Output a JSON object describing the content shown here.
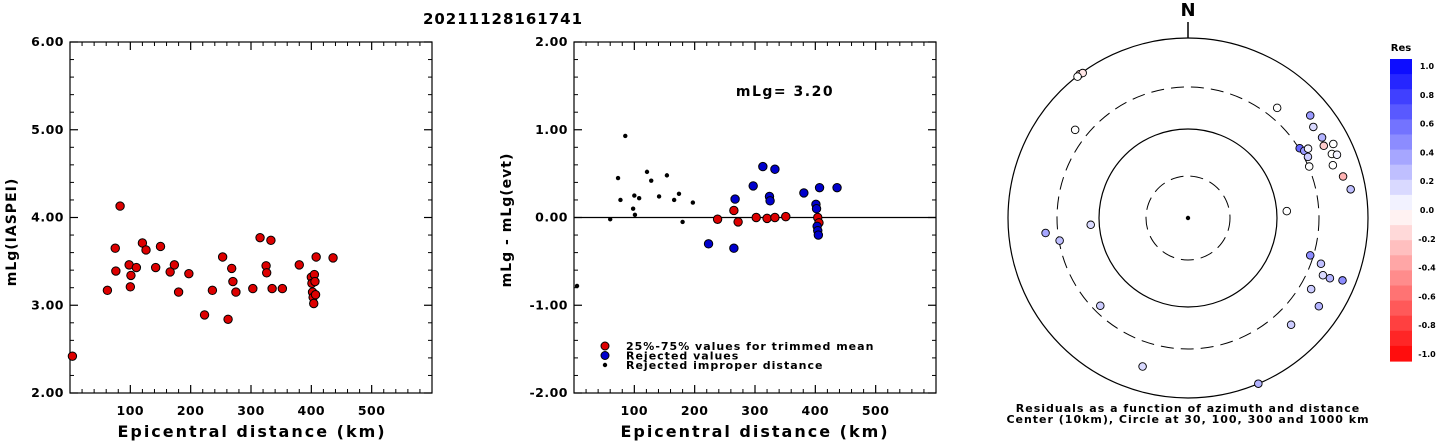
{
  "title": "20211128161741",
  "chart_data": [
    {
      "type": "scatter",
      "id": "left",
      "xlabel": "Epicentral distance (km)",
      "ylabel": "mLg(IASPEI)",
      "xlim": [
        0,
        600
      ],
      "ylim": [
        2.0,
        6.0
      ],
      "xticks": [
        "100",
        "200",
        "300",
        "400",
        "500"
      ],
      "yticks": [
        "2.00",
        "3.00",
        "4.00",
        "5.00",
        "6.00"
      ],
      "grid": false,
      "points": [
        [
          4,
          2.42
        ],
        [
          62,
          3.17
        ],
        [
          75,
          3.65
        ],
        [
          76,
          3.39
        ],
        [
          83,
          4.13
        ],
        [
          98,
          3.46
        ],
        [
          100,
          3.21
        ],
        [
          101,
          3.34
        ],
        [
          110,
          3.43
        ],
        [
          120,
          3.71
        ],
        [
          126,
          3.63
        ],
        [
          142,
          3.43
        ],
        [
          150,
          3.67
        ],
        [
          166,
          3.38
        ],
        [
          173,
          3.46
        ],
        [
          180,
          3.15
        ],
        [
          197,
          3.36
        ],
        [
          223,
          2.89
        ],
        [
          236,
          3.17
        ],
        [
          253,
          3.55
        ],
        [
          262,
          2.84
        ],
        [
          268,
          3.42
        ],
        [
          270,
          3.27
        ],
        [
          275,
          3.15
        ],
        [
          303,
          3.19
        ],
        [
          315,
          3.77
        ],
        [
          325,
          3.45
        ],
        [
          326,
          3.37
        ],
        [
          333,
          3.74
        ],
        [
          335,
          3.19
        ],
        [
          352,
          3.19
        ],
        [
          380,
          3.46
        ],
        [
          400,
          3.32
        ],
        [
          401,
          3.25
        ],
        [
          402,
          3.15
        ],
        [
          403,
          3.09
        ],
        [
          404,
          3.02
        ],
        [
          405,
          3.35
        ],
        [
          406,
          3.27
        ],
        [
          407,
          3.12
        ],
        [
          408,
          3.55
        ],
        [
          436,
          3.54
        ]
      ]
    },
    {
      "type": "scatter",
      "id": "middle",
      "xlabel": "Epicentral distance (km)",
      "ylabel": "mLg - mLg(evt)",
      "xlim": [
        0,
        600
      ],
      "ylim": [
        -2.0,
        2.0
      ],
      "xticks": [
        "100",
        "200",
        "300",
        "400",
        "500"
      ],
      "yticks": [
        "-2.00",
        "-1.00",
        "0.00",
        "1.00",
        "2.00"
      ],
      "annotation": "mLg= 3.20",
      "series": [
        {
          "name": "25%-75% values for trimmed mean",
          "color": "#dd0000",
          "points": [
            [
              238,
              -0.02
            ],
            [
              265,
              0.08
            ],
            [
              272,
              -0.05
            ],
            [
              302,
              0.0
            ],
            [
              320,
              -0.01
            ],
            [
              333,
              0.0
            ],
            [
              351,
              0.01
            ],
            [
              404,
              0.0
            ],
            [
              406,
              -0.06
            ]
          ]
        },
        {
          "name": "Rejected values",
          "color": "#0000cc",
          "points": [
            [
              223,
              -0.3
            ],
            [
              265,
              -0.35
            ],
            [
              267,
              0.21
            ],
            [
              297,
              0.36
            ],
            [
              313,
              0.58
            ],
            [
              324,
              0.24
            ],
            [
              325,
              0.19
            ],
            [
              333,
              0.55
            ],
            [
              381,
              0.28
            ],
            [
              401,
              0.15
            ],
            [
              402,
              0.1
            ],
            [
              403,
              -0.1
            ],
            [
              404,
              -0.15
            ],
            [
              405,
              -0.2
            ],
            [
              407,
              0.34
            ],
            [
              436,
              0.34
            ]
          ]
        },
        {
          "name": "Rejected improper distance",
          "color": "#000000",
          "points": [
            [
              5,
              -0.78
            ],
            [
              60,
              -0.02
            ],
            [
              73,
              0.45
            ],
            [
              77,
              0.2
            ],
            [
              85,
              0.93
            ],
            [
              98,
              0.1
            ],
            [
              100,
              0.25
            ],
            [
              101,
              0.03
            ],
            [
              108,
              0.22
            ],
            [
              121,
              0.52
            ],
            [
              128,
              0.42
            ],
            [
              141,
              0.24
            ],
            [
              154,
              0.48
            ],
            [
              166,
              0.2
            ],
            [
              174,
              0.27
            ],
            [
              180,
              -0.05
            ],
            [
              197,
              0.17
            ]
          ]
        }
      ]
    }
  ],
  "polar": {
    "north": "N",
    "caption_line1": "Residuals as a function of azimuth and distance",
    "caption_line2": "Center (10km), Circle at 30, 100, 300 and 1000 km",
    "colorbar_title": "Res",
    "colorbar_labels": [
      "1.0",
      "0.8",
      "0.6",
      "0.4",
      "0.2",
      "0.0",
      "-0.2",
      "-0.4",
      "-0.6",
      "-0.8",
      "-1.0"
    ],
    "stations": [
      {
        "az": 323,
        "dist": 1000,
        "res": -0.2
      },
      {
        "az": 324,
        "dist": 980,
        "res": -0.1
      },
      {
        "az": 322,
        "dist": 985,
        "res": 0.0
      },
      {
        "az": 308,
        "dist": 405,
        "res": 0.0
      },
      {
        "az": 39,
        "dist": 390,
        "res": 0.0
      },
      {
        "az": 264,
        "dist": 405,
        "res": 0.35
      },
      {
        "az": 260,
        "dist": 295,
        "res": 0.25
      },
      {
        "az": 266,
        "dist": 125,
        "res": 0.15
      },
      {
        "az": 58,
        "dist": 305,
        "res": 0.6
      },
      {
        "az": 60,
        "dist": 325,
        "res": 0.4
      },
      {
        "az": 63,
        "dist": 328,
        "res": 0.2
      },
      {
        "az": 60,
        "dist": 362,
        "res": 0.05
      },
      {
        "az": 67,
        "dist": 305,
        "res": 0.0
      },
      {
        "az": 50,
        "dist": 605,
        "res": 0.4
      },
      {
        "az": 54,
        "dist": 540,
        "res": 0.15
      },
      {
        "az": 59,
        "dist": 560,
        "res": 0.3
      },
      {
        "az": 62,
        "dist": 525,
        "res": -0.2
      },
      {
        "az": 66,
        "dist": 575,
        "res": 0.0
      },
      {
        "az": 67,
        "dist": 640,
        "res": 0.05
      },
      {
        "az": 63,
        "dist": 660,
        "res": 0.0
      },
      {
        "az": 70,
        "dist": 530,
        "res": 0.0
      },
      {
        "az": 75,
        "dist": 620,
        "res": -0.3
      },
      {
        "az": 80,
        "dist": 695,
        "res": 0.25
      },
      {
        "az": 107,
        "dist": 276,
        "res": 0.45
      },
      {
        "az": 109,
        "dist": 380,
        "res": 0.25
      },
      {
        "az": 113,
        "dist": 440,
        "res": 0.15
      },
      {
        "az": 113,
        "dist": 530,
        "res": 0.3
      },
      {
        "az": 112,
        "dist": 720,
        "res": 0.45
      },
      {
        "az": 120,
        "dist": 395,
        "res": 0.2
      },
      {
        "az": 124,
        "dist": 580,
        "res": 0.3
      },
      {
        "az": 136,
        "dist": 460,
        "res": 0.2
      },
      {
        "az": 197,
        "dist": 545,
        "res": 0.15
      },
      {
        "az": 225,
        "dist": 250,
        "res": 0.2
      },
      {
        "az": 157,
        "dist": 1000,
        "res": 0.3
      },
      {
        "az": 86,
        "dist": 130,
        "res": 0.0
      }
    ]
  }
}
